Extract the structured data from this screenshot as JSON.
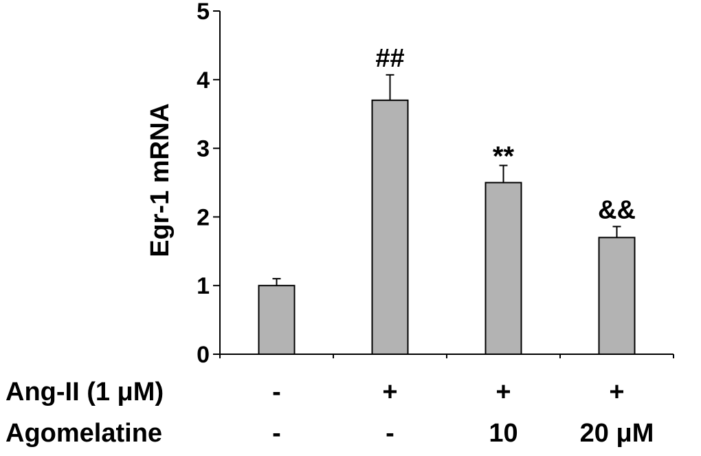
{
  "chart_data": {
    "type": "bar",
    "ylabel": "Egr-1 mRNA",
    "ylim": [
      0,
      5
    ],
    "yticks": [
      0,
      1,
      2,
      3,
      4,
      5
    ],
    "bar_color": "#b3b3b3",
    "values": [
      1.0,
      3.7,
      2.5,
      1.7
    ],
    "errors": [
      0.1,
      0.37,
      0.25,
      0.16
    ],
    "annotations": [
      "",
      "##",
      "**",
      "&&"
    ],
    "condition_rows": [
      {
        "label": "Ang-II (1 μM)",
        "values": [
          "-",
          "+",
          "+",
          "+"
        ]
      },
      {
        "label": "Agomelatine",
        "values": [
          "-",
          "-",
          "10",
          "20 μM"
        ]
      }
    ]
  }
}
